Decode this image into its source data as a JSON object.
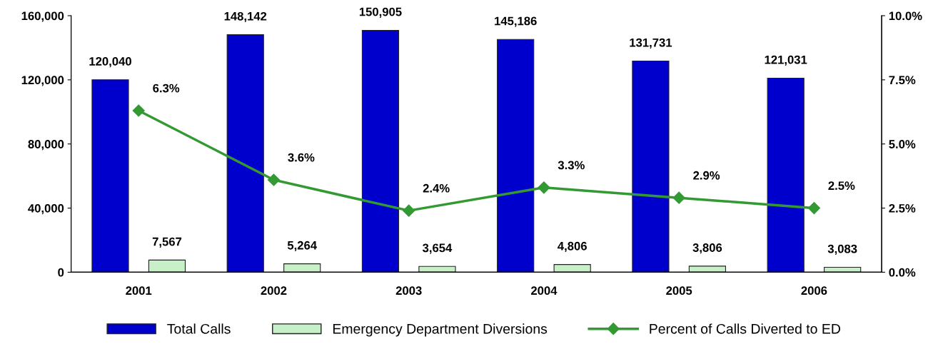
{
  "chart_data": {
    "type": "bar",
    "categories": [
      "2001",
      "2002",
      "2003",
      "2004",
      "2005",
      "2006"
    ],
    "series": [
      {
        "name": "Total Calls",
        "color": "#0000cc",
        "values": [
          120040,
          148142,
          150905,
          145186,
          131731,
          121031
        ],
        "value_labels": [
          "120,040",
          "148,142",
          "150,905",
          "145,186",
          "131,731",
          "121,031"
        ]
      },
      {
        "name": "Emergency Department Diversions",
        "color": "#c8f0c8",
        "values": [
          7567,
          5264,
          3654,
          4806,
          3806,
          3083
        ],
        "value_labels": [
          "7,567",
          "5,264",
          "3,654",
          "4,806",
          "3,806",
          "3,083"
        ]
      },
      {
        "name": "Percent of Calls Diverted to ED",
        "type": "line",
        "axis": "y2",
        "color": "#339933",
        "marker": "diamond",
        "values": [
          6.3,
          3.6,
          2.4,
          3.3,
          2.9,
          2.5
        ],
        "value_labels": [
          "6.3%",
          "3.6%",
          "2.4%",
          "3.3%",
          "2.9%",
          "2.5%"
        ]
      }
    ],
    "ylim": [
      0,
      160000
    ],
    "yticks": [
      {
        "value": 0,
        "label": "0"
      },
      {
        "value": 40000,
        "label": "40,000"
      },
      {
        "value": 80000,
        "label": "80,000"
      },
      {
        "value": 120000,
        "label": "120,000"
      },
      {
        "value": 160000,
        "label": "160,000"
      }
    ],
    "y2lim": [
      0,
      10
    ],
    "y2ticks": [
      {
        "value": 0,
        "label": "0.0%"
      },
      {
        "value": 2.5,
        "label": "2.5%"
      },
      {
        "value": 5,
        "label": "5.0%"
      },
      {
        "value": 7.5,
        "label": "7.5%"
      },
      {
        "value": 10,
        "label": "10.0%"
      }
    ],
    "grid": false,
    "legend": "bottom"
  }
}
